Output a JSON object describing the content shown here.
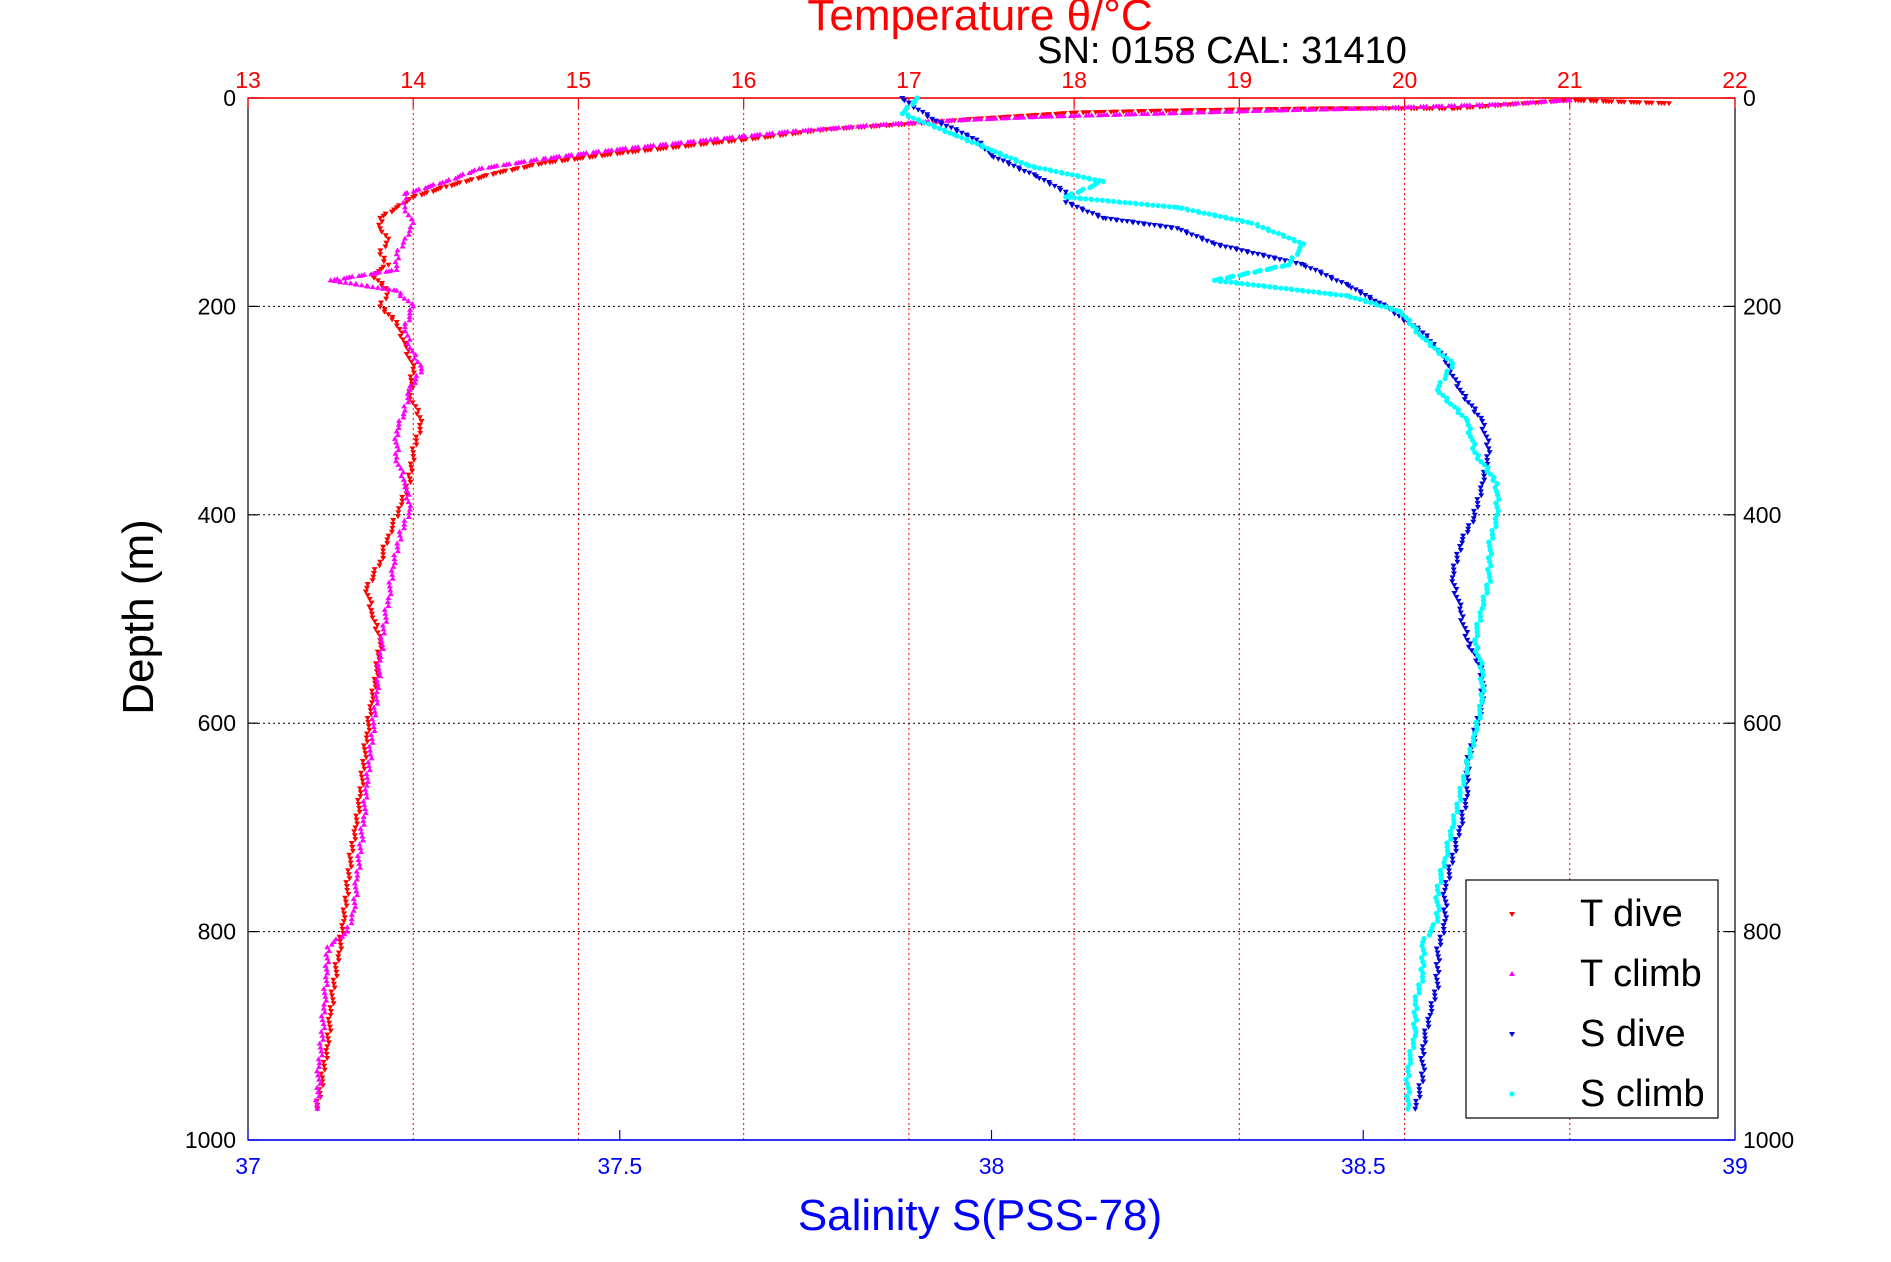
{
  "header": {
    "sn_cal": "SN: 0158  CAL: 31410"
  },
  "colors": {
    "temperature_axis": "#ff0000",
    "salinity_axis": "#0000ff",
    "t_dive": "#ff0000",
    "t_climb": "#ff00ff",
    "s_dive": "#0000dd",
    "s_climb": "#00ffff",
    "grid_temp": "#ff0000",
    "grid_depth": "#000000"
  },
  "chart_data": {
    "type": "scatter",
    "title": "Temperature θ/°C",
    "xlabel_top": "Temperature θ/°C",
    "xlabel_bottom": "Salinity S(PSS-78)",
    "ylabel": "Depth (m)",
    "x_top_lim": [
      13,
      22
    ],
    "x_top_ticks": [
      "13",
      "14",
      "15",
      "16",
      "17",
      "18",
      "19",
      "20",
      "21",
      "22"
    ],
    "x_bottom_lim": [
      37,
      39
    ],
    "x_bottom_ticks": [
      "37",
      "37.5",
      "38",
      "38.5",
      "39"
    ],
    "ylim": [
      0,
      1000
    ],
    "y_reversed": true,
    "y_ticks": [
      "0",
      "200",
      "400",
      "600",
      "800",
      "1000"
    ],
    "grid": true,
    "legend_position": "bottom-right",
    "series": [
      {
        "name": "T dive",
        "axis": "temperature",
        "marker": "down-triangle",
        "points": [
          [
            21.6,
            5
          ],
          [
            21.0,
            2
          ],
          [
            20.3,
            10
          ],
          [
            19.5,
            10
          ],
          [
            18.6,
            12
          ],
          [
            18.0,
            14
          ],
          [
            17.4,
            20
          ],
          [
            17.0,
            25
          ],
          [
            16.5,
            30
          ],
          [
            16.0,
            40
          ],
          [
            15.3,
            52
          ],
          [
            14.8,
            62
          ],
          [
            14.5,
            72
          ],
          [
            14.2,
            85
          ],
          [
            14.0,
            95
          ],
          [
            13.9,
            105
          ],
          [
            13.8,
            115
          ],
          [
            13.8,
            125
          ],
          [
            13.85,
            135
          ],
          [
            13.8,
            150
          ],
          [
            13.85,
            160
          ],
          [
            13.75,
            170
          ],
          [
            13.85,
            185
          ],
          [
            13.8,
            200
          ],
          [
            13.9,
            215
          ],
          [
            13.95,
            235
          ],
          [
            14.0,
            260
          ],
          [
            13.98,
            285
          ],
          [
            14.05,
            310
          ],
          [
            14.0,
            340
          ],
          [
            13.98,
            365
          ],
          [
            13.93,
            390
          ],
          [
            13.85,
            420
          ],
          [
            13.8,
            445
          ],
          [
            13.72,
            470
          ],
          [
            13.75,
            495
          ],
          [
            13.8,
            520
          ],
          [
            13.78,
            550
          ],
          [
            13.75,
            580
          ],
          [
            13.72,
            610
          ],
          [
            13.7,
            640
          ],
          [
            13.68,
            670
          ],
          [
            13.65,
            700
          ],
          [
            13.62,
            730
          ],
          [
            13.6,
            760
          ],
          [
            13.58,
            790
          ],
          [
            13.55,
            820
          ],
          [
            13.52,
            850
          ],
          [
            13.5,
            880
          ],
          [
            13.48,
            910
          ],
          [
            13.45,
            940
          ],
          [
            13.42,
            970
          ]
        ]
      },
      {
        "name": "T climb",
        "axis": "temperature",
        "marker": "up-triangle",
        "points": [
          [
            21.0,
            2
          ],
          [
            20.6,
            6
          ],
          [
            19.8,
            10
          ],
          [
            19.2,
            12
          ],
          [
            18.5,
            15
          ],
          [
            17.8,
            18
          ],
          [
            17.2,
            22
          ],
          [
            16.8,
            26
          ],
          [
            16.3,
            32
          ],
          [
            15.8,
            40
          ],
          [
            15.2,
            50
          ],
          [
            14.8,
            58
          ],
          [
            14.4,
            68
          ],
          [
            14.2,
            80
          ],
          [
            13.95,
            92
          ],
          [
            13.95,
            105
          ],
          [
            14.0,
            120
          ],
          [
            13.95,
            135
          ],
          [
            13.9,
            150
          ],
          [
            13.9,
            165
          ],
          [
            13.5,
            175
          ],
          [
            13.9,
            185
          ],
          [
            14.0,
            200
          ],
          [
            13.95,
            220
          ],
          [
            13.98,
            240
          ],
          [
            14.05,
            260
          ],
          [
            13.98,
            280
          ],
          [
            13.95,
            300
          ],
          [
            13.9,
            320
          ],
          [
            13.9,
            345
          ],
          [
            13.95,
            370
          ],
          [
            13.98,
            395
          ],
          [
            13.92,
            420
          ],
          [
            13.88,
            450
          ],
          [
            13.85,
            480
          ],
          [
            13.82,
            510
          ],
          [
            13.8,
            540
          ],
          [
            13.78,
            570
          ],
          [
            13.76,
            600
          ],
          [
            13.74,
            630
          ],
          [
            13.72,
            660
          ],
          [
            13.7,
            690
          ],
          [
            13.68,
            720
          ],
          [
            13.66,
            750
          ],
          [
            13.64,
            780
          ],
          [
            13.6,
            800
          ],
          [
            13.48,
            815
          ],
          [
            13.48,
            840
          ],
          [
            13.46,
            870
          ],
          [
            13.45,
            900
          ],
          [
            13.43,
            930
          ],
          [
            13.42,
            970
          ]
        ]
      },
      {
        "name": "S dive",
        "axis": "salinity",
        "marker": "down-triangle",
        "points": [
          [
            37.88,
            0
          ],
          [
            37.92,
            20
          ],
          [
            37.98,
            40
          ],
          [
            38.0,
            55
          ],
          [
            38.06,
            75
          ],
          [
            38.1,
            90
          ],
          [
            38.1,
            100
          ],
          [
            38.15,
            115
          ],
          [
            38.25,
            125
          ],
          [
            38.3,
            140
          ],
          [
            38.42,
            160
          ],
          [
            38.48,
            180
          ],
          [
            38.53,
            200
          ],
          [
            38.58,
            225
          ],
          [
            38.61,
            250
          ],
          [
            38.63,
            280
          ],
          [
            38.66,
            310
          ],
          [
            38.67,
            340
          ],
          [
            38.66,
            370
          ],
          [
            38.65,
            400
          ],
          [
            38.63,
            430
          ],
          [
            38.62,
            460
          ],
          [
            38.63,
            490
          ],
          [
            38.64,
            520
          ],
          [
            38.66,
            550
          ],
          [
            38.66,
            580
          ],
          [
            38.65,
            610
          ],
          [
            38.64,
            640
          ],
          [
            38.64,
            670
          ],
          [
            38.63,
            700
          ],
          [
            38.62,
            730
          ],
          [
            38.61,
            760
          ],
          [
            38.61,
            790
          ],
          [
            38.6,
            820
          ],
          [
            38.6,
            850
          ],
          [
            38.59,
            880
          ],
          [
            38.58,
            910
          ],
          [
            38.58,
            940
          ],
          [
            38.57,
            970
          ]
        ]
      },
      {
        "name": "S climb",
        "axis": "salinity",
        "marker": "dot",
        "points": [
          [
            37.9,
            0
          ],
          [
            37.88,
            15
          ],
          [
            37.95,
            35
          ],
          [
            38.0,
            50
          ],
          [
            38.05,
            65
          ],
          [
            38.15,
            80
          ],
          [
            38.1,
            95
          ],
          [
            38.25,
            105
          ],
          [
            38.35,
            120
          ],
          [
            38.42,
            140
          ],
          [
            38.4,
            160
          ],
          [
            38.3,
            175
          ],
          [
            38.48,
            190
          ],
          [
            38.55,
            205
          ],
          [
            38.58,
            230
          ],
          [
            38.62,
            255
          ],
          [
            38.6,
            280
          ],
          [
            38.64,
            310
          ],
          [
            38.65,
            340
          ],
          [
            38.68,
            370
          ],
          [
            38.68,
            400
          ],
          [
            38.67,
            430
          ],
          [
            38.67,
            460
          ],
          [
            38.66,
            490
          ],
          [
            38.65,
            520
          ],
          [
            38.66,
            550
          ],
          [
            38.66,
            580
          ],
          [
            38.65,
            610
          ],
          [
            38.64,
            640
          ],
          [
            38.63,
            670
          ],
          [
            38.62,
            700
          ],
          [
            38.61,
            730
          ],
          [
            38.6,
            760
          ],
          [
            38.6,
            790
          ],
          [
            38.58,
            810
          ],
          [
            38.58,
            840
          ],
          [
            38.57,
            870
          ],
          [
            38.57,
            900
          ],
          [
            38.56,
            930
          ],
          [
            38.56,
            970
          ]
        ]
      }
    ]
  }
}
